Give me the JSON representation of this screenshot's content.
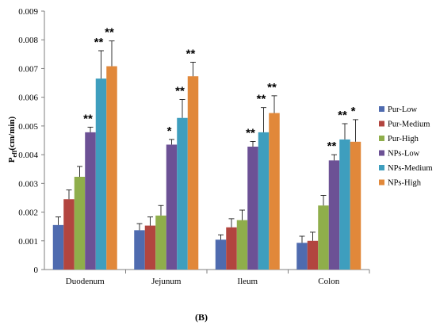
{
  "chart_data": {
    "type": "bar",
    "categories": [
      "Duodenum",
      "Jejunum",
      "Ileum",
      "Colon"
    ],
    "ylim": [
      0,
      0.009
    ],
    "yticks": [
      "0",
      "0.001",
      "0.002",
      "0.003",
      "0.004",
      "0.005",
      "0.006",
      "0.007",
      "0.008",
      "0.009"
    ],
    "ylabel_main": "P",
    "ylabel_sub": "eff",
    "ylabel_rest": "(cm/min)",
    "grid": false,
    "legend_position": "right",
    "series": [
      {
        "name": "Pur-Low",
        "color": "#4F6BAF",
        "values": [
          0.00155,
          0.00137,
          0.00104,
          0.00093
        ],
        "errors": [
          0.00028,
          0.00023,
          0.00017,
          0.00023
        ],
        "significance": [
          "",
          "",
          "",
          ""
        ]
      },
      {
        "name": "Pur-Medium",
        "color": "#B2453F",
        "values": [
          0.00245,
          0.00153,
          0.00147,
          0.001
        ],
        "errors": [
          0.00032,
          0.0003,
          0.0003,
          0.0003
        ],
        "significance": [
          "",
          "",
          "",
          ""
        ]
      },
      {
        "name": "Pur-High",
        "color": "#8FAE4B",
        "values": [
          0.00323,
          0.00188,
          0.00172,
          0.00223
        ],
        "errors": [
          0.00036,
          0.00035,
          0.00035,
          0.00035
        ],
        "significance": [
          "",
          "",
          "",
          ""
        ]
      },
      {
        "name": "NPs-Low",
        "color": "#6C5195",
        "values": [
          0.00478,
          0.00435,
          0.00428,
          0.0038
        ],
        "errors": [
          0.00018,
          0.00018,
          0.00018,
          0.0002
        ],
        "significance": [
          "**",
          "*",
          "**",
          "**"
        ]
      },
      {
        "name": "NPs-Medium",
        "color": "#3E9EBE",
        "values": [
          0.00665,
          0.00528,
          0.00478,
          0.00453
        ],
        "errors": [
          0.00097,
          0.00064,
          0.00086,
          0.00055
        ],
        "significance": [
          "**",
          "**",
          "**",
          "**"
        ]
      },
      {
        "name": "NPs-High",
        "color": "#E1883A",
        "values": [
          0.00708,
          0.00673,
          0.00545,
          0.00445
        ],
        "errors": [
          0.00088,
          0.00049,
          0.0006,
          0.00077
        ],
        "significance": [
          "**",
          "**",
          "**",
          "*"
        ]
      }
    ],
    "panel_label": "(B)"
  }
}
